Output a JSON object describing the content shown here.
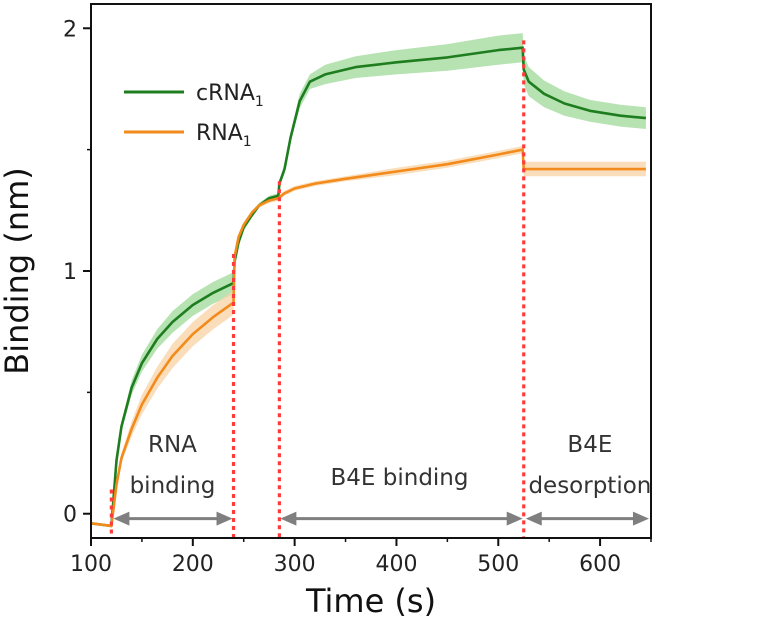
{
  "chart_data": {
    "type": "line",
    "title": "",
    "xlabel": "Time (s)",
    "ylabel": "Binding (nm)",
    "xlim": [
      100,
      650
    ],
    "ylim": [
      -0.1,
      2.1
    ],
    "x_ticks": [
      100,
      200,
      300,
      400,
      500,
      600
    ],
    "y_ticks": [
      0,
      1,
      2
    ],
    "legend": {
      "position": "top-left"
    },
    "series": [
      {
        "name": "cRNA1",
        "label_main": "cRNA",
        "label_sub": "1",
        "color": "#1e7d1e",
        "band_color": "#9fd99a",
        "x": [
          90,
          120,
          125,
          130,
          140,
          150,
          165,
          180,
          200,
          220,
          240,
          241,
          245,
          250,
          258,
          265,
          275,
          284,
          285,
          290,
          296,
          305,
          315,
          330,
          360,
          400,
          450,
          500,
          524,
          525,
          530,
          545,
          565,
          590,
          620,
          645
        ],
        "y": [
          -0.04,
          -0.05,
          0.22,
          0.36,
          0.52,
          0.62,
          0.72,
          0.79,
          0.86,
          0.91,
          0.95,
          1.04,
          1.12,
          1.18,
          1.23,
          1.27,
          1.3,
          1.31,
          1.36,
          1.42,
          1.55,
          1.7,
          1.78,
          1.81,
          1.84,
          1.86,
          1.88,
          1.91,
          1.92,
          1.83,
          1.78,
          1.73,
          1.69,
          1.66,
          1.64,
          1.63
        ],
        "band": [
          0.0,
          0.0,
          0.01,
          0.02,
          0.03,
          0.035,
          0.04,
          0.045,
          0.045,
          0.045,
          0.045,
          0.03,
          0.02,
          0.015,
          0.01,
          0.01,
          0.01,
          0.01,
          0.01,
          0.02,
          0.02,
          0.03,
          0.03,
          0.04,
          0.045,
          0.05,
          0.055,
          0.06,
          0.06,
          0.06,
          0.06,
          0.055,
          0.05,
          0.045,
          0.045,
          0.045
        ]
      },
      {
        "name": "RNA1",
        "label_main": "RNA",
        "label_sub": "1",
        "color": "#f28a1c",
        "band_color": "#f8d3a4",
        "x": [
          90,
          120,
          125,
          130,
          140,
          150,
          165,
          180,
          200,
          220,
          240,
          241,
          245,
          250,
          258,
          265,
          275,
          284,
          290,
          300,
          320,
          350,
          400,
          450,
          500,
          524,
          525,
          545,
          600,
          645
        ],
        "y": [
          -0.04,
          -0.05,
          0.12,
          0.23,
          0.35,
          0.45,
          0.56,
          0.65,
          0.74,
          0.81,
          0.87,
          1.06,
          1.14,
          1.19,
          1.24,
          1.27,
          1.29,
          1.3,
          1.32,
          1.34,
          1.36,
          1.38,
          1.41,
          1.44,
          1.48,
          1.5,
          1.42,
          1.42,
          1.42,
          1.42
        ],
        "band": [
          0.0,
          0.0,
          0.01,
          0.02,
          0.03,
          0.04,
          0.045,
          0.05,
          0.05,
          0.05,
          0.05,
          0.02,
          0.015,
          0.01,
          0.01,
          0.01,
          0.01,
          0.01,
          0.01,
          0.01,
          0.01,
          0.01,
          0.015,
          0.015,
          0.015,
          0.015,
          0.03,
          0.03,
          0.03,
          0.03
        ]
      }
    ],
    "event_lines": {
      "x": [
        120,
        240,
        285,
        525
      ],
      "color": "#ff3b3b"
    },
    "phases": [
      {
        "lines": [
          "RNA",
          "binding"
        ],
        "x_start": 122,
        "x_end": 239,
        "label_x": 180,
        "y": -0.02
      },
      {
        "lines": [
          "B4E binding"
        ],
        "x_start": 286,
        "x_end": 524,
        "label_x": 403,
        "y": -0.02
      },
      {
        "lines": [
          "B4E",
          "desorption"
        ],
        "x_start": 527,
        "x_end": 648,
        "label_x": 590,
        "y": -0.02
      }
    ],
    "arrow_color": "#7f7f7f"
  }
}
